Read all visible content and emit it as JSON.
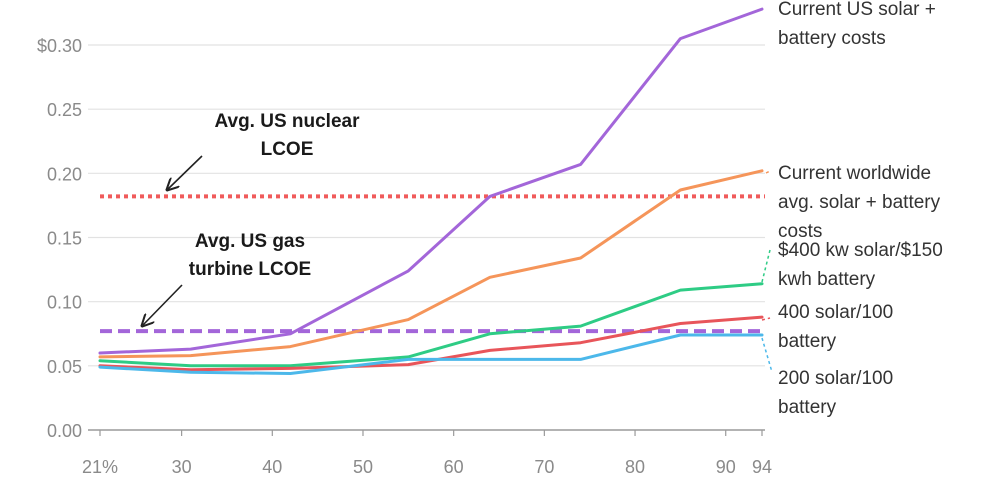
{
  "chart_data": {
    "type": "line",
    "title": "",
    "xlabel": "",
    "ylabel": "",
    "xlim": [
      21,
      94
    ],
    "ylim": [
      0,
      0.3
    ],
    "x_ticks": [
      21,
      30,
      40,
      50,
      60,
      70,
      80,
      90,
      94
    ],
    "x_tick_labels": [
      "21%",
      "30",
      "40",
      "50",
      "60",
      "70",
      "80",
      "90",
      "94"
    ],
    "y_ticks": [
      0,
      0.05,
      0.1,
      0.15,
      0.2,
      0.25,
      0.3
    ],
    "y_tick_labels": [
      "0.00",
      "0.05",
      "0.10",
      "0.15",
      "0.20",
      "0.25",
      "$0.30"
    ],
    "x": [
      21,
      31,
      42,
      55,
      64,
      74,
      85,
      94
    ],
    "series": [
      {
        "name": "current-us",
        "label_lines": [
          "Current US solar +",
          "battery costs"
        ],
        "color": "#a366d9",
        "values": [
          0.06,
          0.063,
          0.075,
          0.124,
          0.182,
          0.207,
          0.305,
          0.328
        ]
      },
      {
        "name": "worldwide",
        "label_lines": [
          "Current worldwide",
          "avg. solar + battery",
          "costs"
        ],
        "color": "#f5955a",
        "values": [
          0.057,
          0.058,
          0.065,
          0.086,
          0.119,
          0.134,
          0.187,
          0.202
        ]
      },
      {
        "name": "400kw",
        "label_lines": [
          "$400 kw solar/$150",
          "kwh battery"
        ],
        "color": "#2ecc85",
        "values": [
          0.054,
          0.05,
          0.05,
          0.057,
          0.075,
          0.081,
          0.109,
          0.114
        ]
      },
      {
        "name": "400-100",
        "label_lines": [
          "400 solar/100",
          "battery"
        ],
        "color": "#e8555a",
        "values": [
          0.05,
          0.047,
          0.048,
          0.051,
          0.062,
          0.068,
          0.083,
          0.088
        ]
      },
      {
        "name": "200-100",
        "label_lines": [
          "200 solar/100",
          "battery"
        ],
        "color": "#4cb8ea",
        "values": [
          0.049,
          0.045,
          0.044,
          0.055,
          0.055,
          0.055,
          0.074,
          0.074
        ]
      }
    ],
    "reference_lines": [
      {
        "name": "nuclear",
        "value": 0.182,
        "color": "#f05b5b",
        "dash": "dotted",
        "label_lines": [
          "Avg. US nuclear",
          "LCOE"
        ]
      },
      {
        "name": "gas",
        "value": 0.077,
        "color": "#a366d9",
        "dash": "dashed",
        "label_lines": [
          "Avg. US gas",
          "turbine LCOE"
        ]
      }
    ]
  }
}
